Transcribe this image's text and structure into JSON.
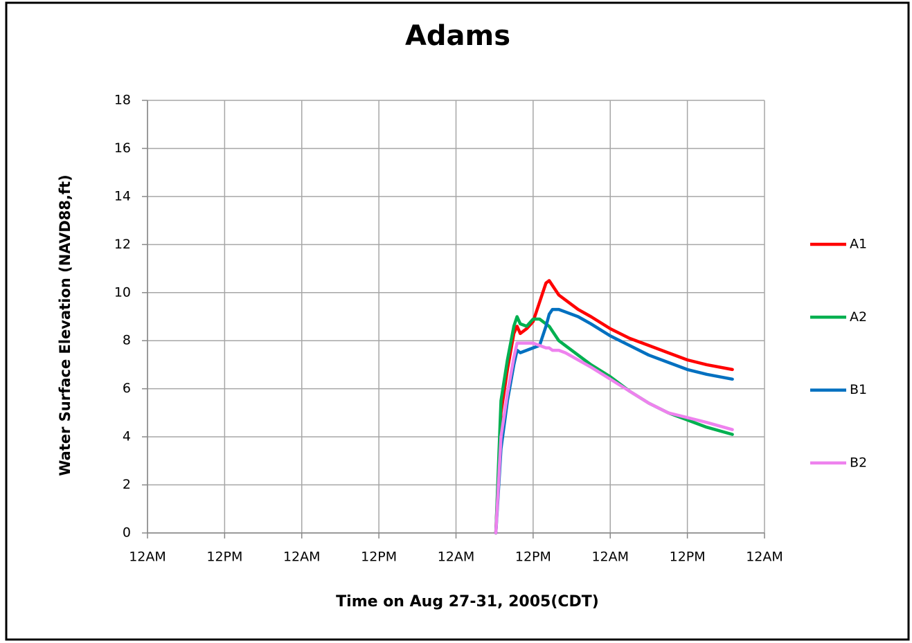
{
  "chart_data": {
    "type": "line",
    "title": "Adams",
    "xlabel": "Time  on Aug 27-31, 2005(CDT)",
    "ylabel": "Water Surface Elevation  (NAVD88,ft)",
    "x": [
      54.2,
      55,
      56,
      57,
      57.5,
      58,
      59,
      60,
      61,
      62,
      62.5,
      63,
      64,
      65,
      67,
      69,
      72,
      75,
      78,
      81,
      84,
      87,
      91
    ],
    "series": [
      {
        "name": "A1",
        "color": "#ff0000",
        "values": [
          0,
          5,
          6.8,
          8.3,
          8.6,
          8.3,
          8.5,
          8.8,
          9.6,
          10.4,
          10.5,
          10.3,
          9.9,
          9.7,
          9.3,
          9.0,
          8.5,
          8.1,
          7.8,
          7.5,
          7.2,
          7.0,
          6.8
        ]
      },
      {
        "name": "A2",
        "color": "#00b050",
        "values": [
          0,
          5.5,
          7.2,
          8.6,
          9.0,
          8.7,
          8.6,
          8.9,
          8.9,
          8.7,
          8.6,
          8.4,
          8.0,
          7.8,
          7.4,
          7.0,
          6.5,
          5.9,
          5.4,
          5.0,
          4.7,
          4.4,
          4.1
        ]
      },
      {
        "name": "B1",
        "color": "#0070c0",
        "values": [
          0,
          3.5,
          5.5,
          7.0,
          7.6,
          7.5,
          7.6,
          7.7,
          7.8,
          8.6,
          9.1,
          9.3,
          9.3,
          9.2,
          9.0,
          8.7,
          8.2,
          7.8,
          7.4,
          7.1,
          6.8,
          6.6,
          6.4
        ]
      },
      {
        "name": "B2",
        "color": "#ee82ee",
        "values": [
          0,
          4.0,
          5.8,
          7.3,
          7.9,
          7.9,
          7.9,
          7.9,
          7.8,
          7.7,
          7.7,
          7.6,
          7.6,
          7.5,
          7.2,
          6.9,
          6.4,
          5.9,
          5.4,
          5.0,
          4.8,
          4.6,
          4.3
        ]
      }
    ],
    "xlim": [
      0,
      96
    ],
    "xticks": [
      {
        "value": 0,
        "label": "12AM"
      },
      {
        "value": 12,
        "label": "12PM"
      },
      {
        "value": 24,
        "label": "12AM"
      },
      {
        "value": 36,
        "label": "12PM"
      },
      {
        "value": 48,
        "label": "12AM"
      },
      {
        "value": 60,
        "label": "12PM"
      },
      {
        "value": 72,
        "label": "12AM"
      },
      {
        "value": 84,
        "label": "12PM"
      },
      {
        "value": 96,
        "label": "12AM"
      }
    ],
    "ylim": [
      0,
      18
    ],
    "yticks": [
      0,
      2,
      4,
      6,
      8,
      10,
      12,
      14,
      16,
      18
    ],
    "grid": true,
    "legend": "right"
  }
}
